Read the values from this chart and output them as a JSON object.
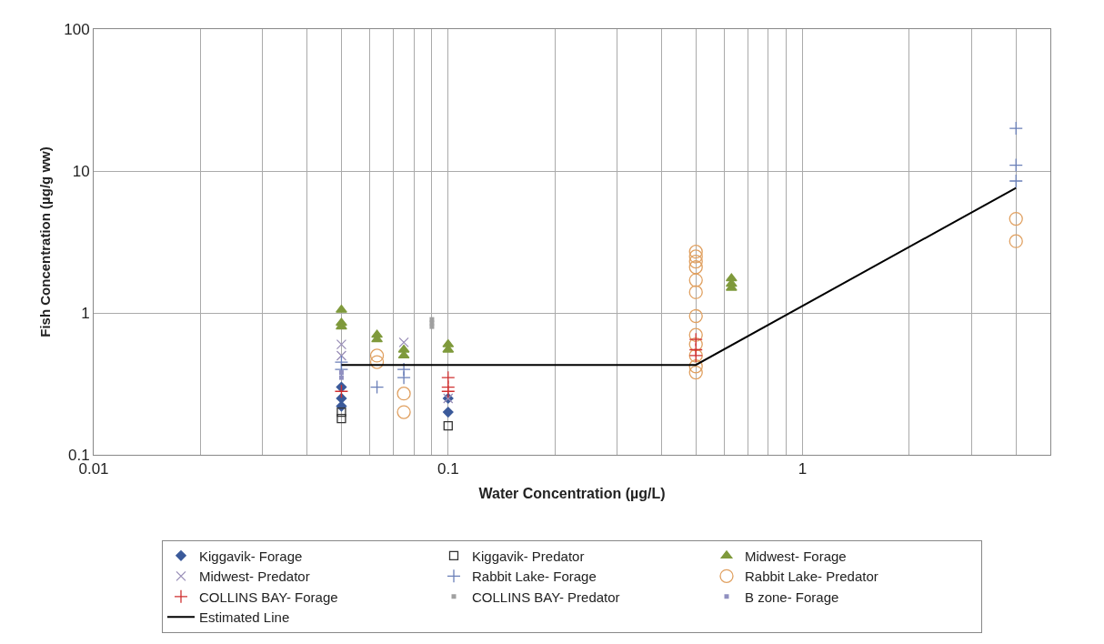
{
  "chart_data": {
    "type": "scatter",
    "xlabel": "Water Concentration (µg/L)",
    "ylabel": "Fish Concentration (µg/g ww)",
    "log": "xy",
    "grid": true,
    "legend": "bottom",
    "xlim": [
      0.01,
      5
    ],
    "ylim": [
      0.1,
      100
    ],
    "xticks": [
      0.01,
      {
        "value": 0.02,
        "label": null
      },
      {
        "value": 0.03,
        "label": null
      },
      {
        "value": 0.04,
        "label": null
      },
      {
        "value": 0.05,
        "label": null
      },
      {
        "value": 0.06,
        "label": null
      },
      {
        "value": 0.07,
        "label": null
      },
      {
        "value": 0.08,
        "label": null
      },
      {
        "value": 0.09,
        "label": null
      },
      0.1,
      {
        "value": 0.2,
        "label": null
      },
      {
        "value": 0.3,
        "label": null
      },
      {
        "value": 0.4,
        "label": null
      },
      {
        "value": 0.5,
        "label": null
      },
      {
        "value": 0.6,
        "label": null
      },
      {
        "value": 0.7,
        "label": null
      },
      {
        "value": 0.8,
        "label": null
      },
      {
        "value": 0.9,
        "label": null
      },
      1,
      {
        "value": 2,
        "label": null
      },
      {
        "value": 3,
        "label": null
      },
      {
        "value": 4,
        "label": null
      }
    ],
    "yticks": [
      0.1,
      1,
      10,
      100
    ],
    "series": [
      {
        "name": "Kiggavik- Forage",
        "type": "scatter",
        "marker": "diamond",
        "color": "#3b5a9a",
        "x": [
          0.05,
          0.05,
          0.05,
          0.1,
          0.1
        ],
        "values": [
          0.22,
          0.25,
          0.3,
          0.2,
          0.25
        ]
      },
      {
        "name": "Kiggavik- Predator",
        "type": "scatter",
        "marker": "square",
        "color": "#333333",
        "x": [
          0.05,
          0.05,
          0.1
        ],
        "values": [
          0.18,
          0.2,
          0.16
        ]
      },
      {
        "name": "Midwest- Forage",
        "type": "scatter",
        "marker": "triangle",
        "color": "#7f9a3c",
        "x": [
          0.05,
          0.05,
          0.05,
          0.063,
          0.063,
          0.075,
          0.075,
          0.1,
          0.1,
          0.63,
          0.63,
          0.63
        ],
        "values": [
          1.05,
          0.85,
          0.8,
          0.7,
          0.65,
          0.55,
          0.5,
          0.6,
          0.55,
          1.75,
          1.6,
          1.5
        ]
      },
      {
        "name": "Midwest- Predator",
        "type": "scatter",
        "marker": "x",
        "color": "#9a8fb8",
        "x": [
          0.05,
          0.05,
          0.075,
          0.1
        ],
        "values": [
          0.6,
          0.5,
          0.62,
          0.25
        ]
      },
      {
        "name": "Rabbit Lake- Forage",
        "type": "scatter",
        "marker": "cross",
        "color": "#6a7fb8",
        "x": [
          0.05,
          0.05,
          0.063,
          0.075,
          0.075,
          4,
          4,
          4
        ],
        "values": [
          0.4,
          0.45,
          0.3,
          0.4,
          0.35,
          20,
          11,
          8.5
        ]
      },
      {
        "name": "Rabbit Lake- Predator",
        "type": "scatter",
        "marker": "circle",
        "color": "#e0a060",
        "x": [
          0.063,
          0.063,
          0.075,
          0.075,
          0.5,
          0.5,
          0.5,
          0.5,
          0.5,
          0.5,
          0.5,
          0.5,
          0.5,
          0.5,
          0.5,
          0.5,
          4,
          4
        ],
        "values": [
          0.5,
          0.45,
          0.27,
          0.2,
          2.7,
          2.5,
          2.3,
          2.1,
          1.7,
          1.4,
          0.95,
          0.7,
          0.6,
          0.5,
          0.42,
          0.38,
          4.6,
          3.2
        ]
      },
      {
        "name": "COLLINS BAY- Forage",
        "type": "scatter",
        "marker": "cross",
        "color": "#d03030",
        "x": [
          0.05,
          0.1,
          0.1,
          0.1,
          0.5,
          0.5,
          0.5
        ],
        "values": [
          0.28,
          0.35,
          0.3,
          0.28,
          0.65,
          0.55,
          0.5
        ]
      },
      {
        "name": "COLLINS BAY- Predator",
        "type": "scatter",
        "marker": "square",
        "color": "#a0a0a0",
        "x": [
          0.09,
          0.09,
          0.09
        ],
        "values": [
          0.9,
          0.85,
          0.8
        ]
      },
      {
        "name": "B zone- Forage",
        "type": "scatter",
        "marker": "square",
        "color": "#9090c0",
        "x": [
          0.05,
          0.05
        ],
        "values": [
          0.35,
          0.38
        ]
      },
      {
        "name": "Estimated Line",
        "type": "line",
        "marker": "none",
        "color": "#000000",
        "x": [
          0.05,
          0.5,
          4
        ],
        "values": [
          0.43,
          0.43,
          7.6
        ]
      }
    ]
  }
}
